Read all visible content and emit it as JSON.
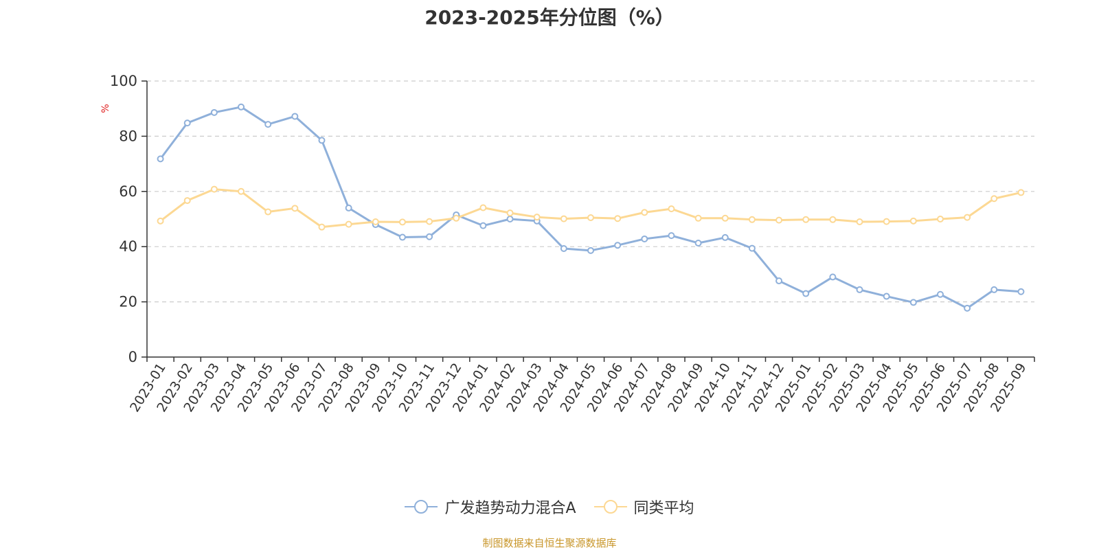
{
  "page": {
    "title": "2023-2025年分位图（%）",
    "source": "制图数据来自恒生聚源数据库"
  },
  "chart_data": {
    "type": "line",
    "title": "2023-2025年分位图（%）",
    "ylabel": "%",
    "xlabel": "",
    "ylim": [
      0,
      100
    ],
    "yticks": [
      0,
      20,
      40,
      60,
      80,
      100
    ],
    "grid": true,
    "legend_position": "bottom",
    "categories": [
      "2023-01",
      "2023-02",
      "2023-03",
      "2023-04",
      "2023-05",
      "2023-06",
      "2023-07",
      "2023-08",
      "2023-09",
      "2023-10",
      "2023-11",
      "2023-12",
      "2024-01",
      "2024-02",
      "2024-03",
      "2024-04",
      "2024-05",
      "2024-06",
      "2024-07",
      "2024-08",
      "2024-09",
      "2024-10",
      "2024-11",
      "2024-12",
      "2025-01",
      "2025-02",
      "2025-03",
      "2025-04",
      "2025-05",
      "2025-06",
      "2025-07",
      "2025-08",
      "2025-09"
    ],
    "series": [
      {
        "name": "广发趋势动力混合A",
        "color": "#8fb0da",
        "values": [
          71.8,
          84.8,
          88.6,
          90.6,
          84.3,
          87.2,
          78.5,
          54.0,
          48.0,
          43.4,
          43.6,
          51.5,
          47.6,
          50.0,
          49.3,
          39.3,
          38.6,
          40.5,
          42.8,
          44.0,
          41.3,
          43.3,
          39.4,
          27.6,
          23.0,
          29.0,
          24.4,
          22.0,
          19.8,
          22.7,
          17.7,
          24.4,
          23.7
        ]
      },
      {
        "name": "同类平均",
        "color": "#fcd893",
        "values": [
          49.3,
          56.7,
          60.8,
          60.0,
          52.6,
          53.9,
          47.1,
          48.1,
          49.0,
          48.9,
          49.1,
          50.3,
          54.1,
          52.2,
          50.7,
          50.1,
          50.5,
          50.2,
          52.4,
          53.7,
          50.3,
          50.3,
          49.8,
          49.6,
          49.8,
          49.8,
          49.0,
          49.1,
          49.3,
          50.0,
          50.6,
          57.4,
          59.6
        ]
      }
    ]
  }
}
